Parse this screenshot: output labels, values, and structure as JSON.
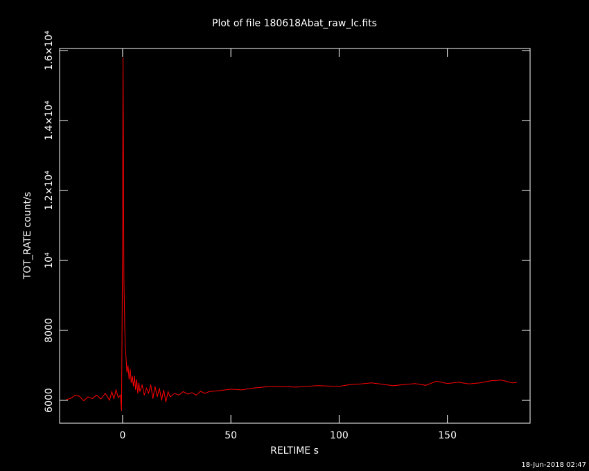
{
  "chart_data": {
    "type": "line",
    "title": "Plot of file 180618Abat_raw_lc.fits",
    "x_label": "RELTIME  s",
    "y_label": "TOT_RATE  count/s",
    "timestamp": "18-Jun-2018 02:47",
    "color": "#ff0000",
    "x": [
      -26,
      -24,
      -22,
      -20,
      -18,
      -16,
      -14,
      -12,
      -10,
      -8,
      -6,
      -5,
      -4,
      -3,
      -2,
      -1,
      -0.5,
      0,
      0.2,
      0.4,
      0.6,
      0.8,
      1,
      1.2,
      1.4,
      1.6,
      1.8,
      2,
      2.5,
      3,
      3.5,
      4,
      4.5,
      5,
      5.5,
      6,
      6.5,
      7,
      7.5,
      8,
      9,
      10,
      11,
      12,
      13,
      14,
      15,
      16,
      17,
      18,
      19,
      20,
      21,
      22,
      24,
      26,
      28,
      30,
      32,
      34,
      36,
      38,
      40,
      45,
      50,
      55,
      60,
      65,
      70,
      80,
      90,
      100,
      105,
      110,
      115,
      120,
      125,
      130,
      135,
      140,
      145,
      150,
      155,
      160,
      165,
      170,
      175,
      180,
      182
    ],
    "values": [
      6020,
      6060,
      6140,
      6120,
      5990,
      6100,
      6050,
      6150,
      6040,
      6200,
      6000,
      6250,
      6050,
      6300,
      6080,
      6150,
      5700,
      10500,
      15800,
      13000,
      9500,
      8800,
      8100,
      7600,
      7400,
      7200,
      7000,
      6800,
      7000,
      6600,
      6900,
      6500,
      6700,
      6400,
      6700,
      6300,
      6600,
      6200,
      6500,
      6250,
      6450,
      6150,
      6350,
      6200,
      6450,
      6050,
      6400,
      6100,
      6350,
      6000,
      6300,
      5950,
      6250,
      6100,
      6200,
      6150,
      6250,
      6180,
      6220,
      6150,
      6260,
      6200,
      6250,
      6280,
      6320,
      6300,
      6350,
      6380,
      6400,
      6380,
      6420,
      6400,
      6450,
      6470,
      6500,
      6460,
      6420,
      6450,
      6480,
      6430,
      6550,
      6480,
      6520,
      6470,
      6500,
      6560,
      6580,
      6500,
      6510
    ],
    "xlim": [
      -29.1,
      188.2
    ],
    "ylim": [
      5347,
      16059
    ],
    "xticks": [
      0,
      50,
      100,
      150
    ],
    "yticks": [
      6000,
      8000,
      {
        "value": 10000,
        "label": "10⁴"
      },
      {
        "value": 12000,
        "label": "1.2×10⁴"
      },
      {
        "value": 14000,
        "label": "1.4×10⁴"
      },
      {
        "value": 16000,
        "label": "1.6×10⁴"
      }
    ]
  }
}
